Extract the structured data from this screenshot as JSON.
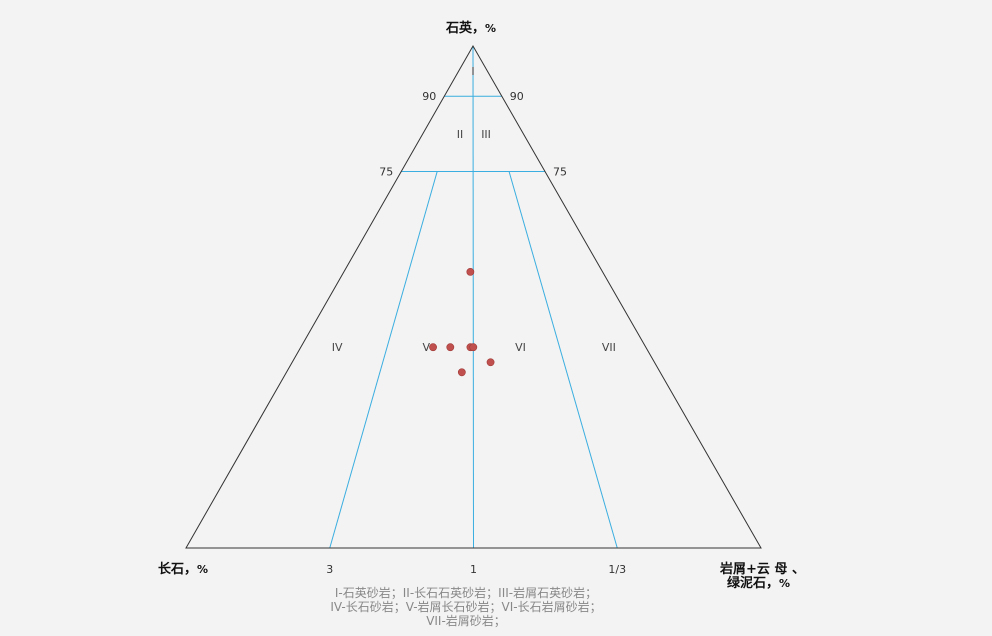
{
  "chart_data": {
    "type": "scatter",
    "subtype": "ternary-qfr-classification",
    "apex_top": {
      "label": "石英，",
      "unit": "%"
    },
    "apex_left": {
      "label": "长石，",
      "unit": "%"
    },
    "apex_right": {
      "label_line1": "岩屑+云 母 、",
      "label_line2": "绿泥石，",
      "unit": "%"
    },
    "quartz_ticks": [
      {
        "value": 90,
        "label": "90"
      },
      {
        "value": 75,
        "label": "75"
      }
    ],
    "ratio_ticks": [
      {
        "ratio": 3,
        "label": "3"
      },
      {
        "ratio": 1,
        "label": "1"
      },
      {
        "ratio": 0.3333,
        "label": "1/3"
      }
    ],
    "regions": [
      {
        "label": "I",
        "q": 95,
        "ratio": 1
      },
      {
        "label": "II",
        "q": 82.5,
        "ratio": 1.7
      },
      {
        "label": "III",
        "q": 82.5,
        "ratio": 0.59
      },
      {
        "label": "IV",
        "q": 40,
        "ratio": 8.5
      },
      {
        "label": "V",
        "q": 40,
        "ratio": 1.75
      },
      {
        "label": "VI",
        "q": 40,
        "ratio": 0.57
      },
      {
        "label": "VII",
        "q": 40,
        "ratio": 0.12
      }
    ],
    "points": [
      {
        "q": 55,
        "f": 23,
        "r": 22
      },
      {
        "q": 40,
        "f": 37,
        "r": 23
      },
      {
        "q": 40,
        "f": 34,
        "r": 26
      },
      {
        "q": 40,
        "f": 30.5,
        "r": 29.5
      },
      {
        "q": 40,
        "f": 30,
        "r": 30
      },
      {
        "q": 37,
        "f": 28.5,
        "r": 34.5
      },
      {
        "q": 35,
        "f": 34.5,
        "r": 30.5
      }
    ],
    "legend_lines": [
      "I-石英砂岩；II-长石石英砂岩；III-岩屑石英砂岩；",
      "IV-长石砂岩；V-岩屑长石砂岩；VI-长石岩屑砂岩；",
      "VII-岩屑砂岩；"
    ],
    "colors": {
      "frame": "#333333",
      "boundary": "#3aaee0",
      "point": "#c0504d"
    }
  }
}
